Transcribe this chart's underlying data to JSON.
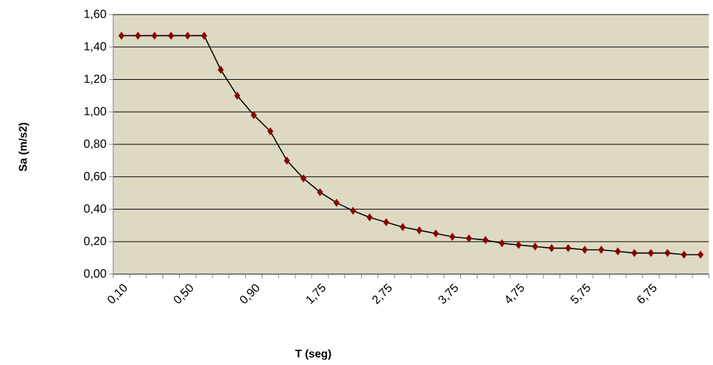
{
  "chart_data": {
    "type": "line",
    "xlabel": "T (seg)",
    "ylabel": "Sa (m/s2)",
    "categories": [
      "0,10",
      null,
      null,
      null,
      "0,50",
      null,
      null,
      null,
      "0,90",
      null,
      null,
      null,
      "1,75",
      null,
      null,
      null,
      "2,75",
      null,
      null,
      null,
      "3,75",
      null,
      null,
      null,
      "4,75",
      null,
      null,
      null,
      "5,75",
      null,
      null,
      null,
      "6,75",
      null,
      null,
      null
    ],
    "series": [
      {
        "color": "#8b0000",
        "values": [
          1.47,
          1.47,
          1.47,
          1.47,
          1.47,
          1.47,
          1.26,
          1.1,
          0.98,
          0.88,
          0.7,
          0.59,
          0.505,
          0.44,
          0.39,
          0.35,
          0.32,
          0.29,
          0.27,
          0.25,
          0.23,
          0.22,
          0.21,
          0.19,
          0.18,
          0.17,
          0.16,
          0.16,
          0.15,
          0.15,
          0.14,
          0.13,
          0.13,
          0.13,
          0.12,
          0.12
        ]
      }
    ],
    "ylim": [
      0,
      1.6
    ],
    "yticks": [
      {
        "value": 0,
        "label": "0,00"
      },
      {
        "value": 0.2,
        "label": "0,20"
      },
      {
        "value": 0.4,
        "label": "0,40"
      },
      {
        "value": 0.6,
        "label": "0,60"
      },
      {
        "value": 0.8,
        "label": "0,80"
      },
      {
        "value": 1.0,
        "label": "1,00"
      },
      {
        "value": 1.2,
        "label": "1,20"
      },
      {
        "value": 1.4,
        "label": "1,40"
      },
      {
        "value": 1.6,
        "label": "1,60"
      }
    ],
    "grid": "y",
    "marker": "diamond",
    "line_style": "solid"
  }
}
